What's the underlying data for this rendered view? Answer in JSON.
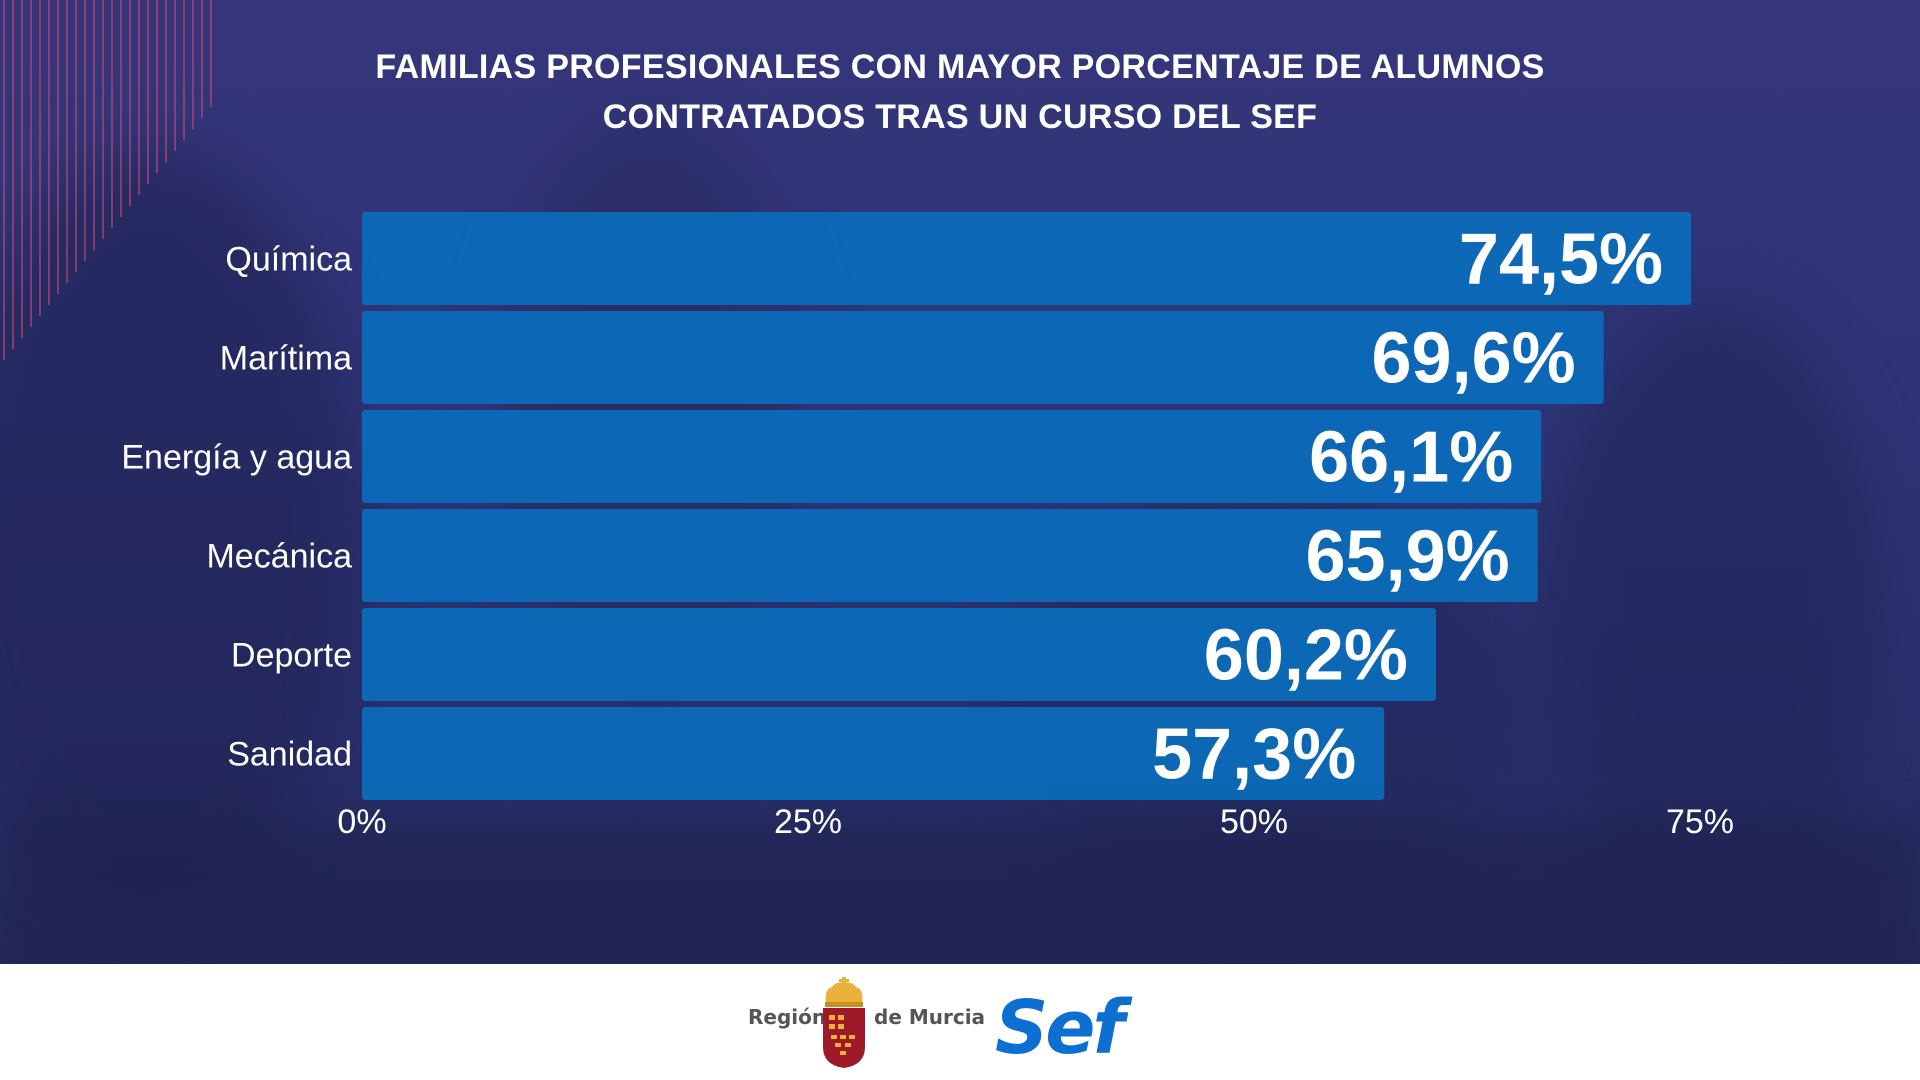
{
  "header": {
    "title_line1": "FAMILIAS PROFESIONALES CON MAYOR PORCENTAJE DE ALUMNOS",
    "title_line2": "CONTRATADOS TRAS UN CURSO DEL SEF"
  },
  "colors": {
    "background": "#2f3477",
    "bar": "#0a6dbc",
    "stripes": "#d04a6f",
    "text": "#ffffff",
    "logo_blue": "#0d6fd1",
    "seal_red": "#9e1a2a",
    "crown_gold": "#e9b23b"
  },
  "chart_data": {
    "type": "bar",
    "orientation": "horizontal",
    "categories": [
      "Química",
      "Marítima",
      "Energía y agua",
      "Mecánica",
      "Deporte",
      "Sanidad"
    ],
    "values": [
      74.5,
      69.6,
      66.1,
      65.9,
      60.2,
      57.3
    ],
    "data_labels": [
      "74,5%",
      "69,6%",
      "66,1%",
      "65,9%",
      "60,2%",
      "57,3%"
    ],
    "x_ticks": [
      0,
      25,
      50,
      75
    ],
    "x_tick_labels": [
      "0%",
      "25%",
      "50%",
      "75%"
    ],
    "xlim": [
      0,
      75
    ],
    "grid": false,
    "legend": "none"
  },
  "footer": {
    "region_left": "Región",
    "region_right": "de Murcia",
    "brand": "Sef",
    "seal_icon": "murcia-coat-of-arms-icon"
  }
}
